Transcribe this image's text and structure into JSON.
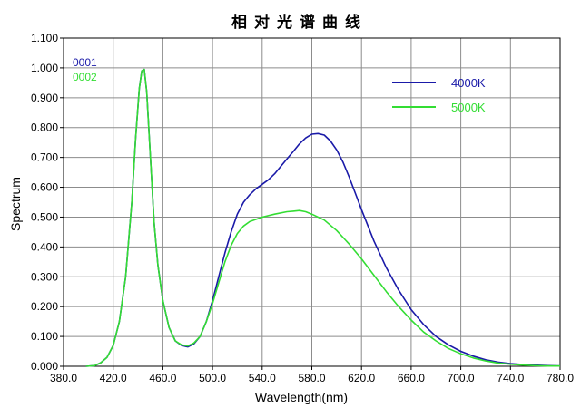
{
  "chart_data": {
    "type": "line",
    "title": "相对光谱曲线",
    "xlabel": "Wavelength(nm)",
    "ylabel": "Spectrum",
    "xlim": [
      380,
      780
    ],
    "ylim": [
      0,
      1.1
    ],
    "x_ticks": [
      "380.0",
      "420.0",
      "460.0",
      "500.0",
      "540.0",
      "580.0",
      "620.0",
      "660.0",
      "700.0",
      "740.0",
      "780.0"
    ],
    "y_ticks": [
      "0.000",
      "0.100",
      "0.200",
      "0.300",
      "0.400",
      "0.500",
      "0.600",
      "0.700",
      "0.800",
      "0.900",
      "1.000",
      "1.100"
    ],
    "grid": true,
    "legend_position": "top-right",
    "series_codes": [
      "0001",
      "0002"
    ],
    "series": [
      {
        "name": "4000K",
        "color": "#1a1aa8",
        "points": [
          [
            398,
            0
          ],
          [
            405,
            0.002
          ],
          [
            410,
            0.012
          ],
          [
            415,
            0.03
          ],
          [
            420,
            0.07
          ],
          [
            425,
            0.15
          ],
          [
            430,
            0.3
          ],
          [
            435,
            0.55
          ],
          [
            438,
            0.76
          ],
          [
            441,
            0.93
          ],
          [
            443,
            0.99
          ],
          [
            445,
            0.995
          ],
          [
            447,
            0.92
          ],
          [
            450,
            0.7
          ],
          [
            453,
            0.48
          ],
          [
            456,
            0.34
          ],
          [
            460,
            0.22
          ],
          [
            465,
            0.13
          ],
          [
            470,
            0.085
          ],
          [
            475,
            0.07
          ],
          [
            480,
            0.065
          ],
          [
            485,
            0.075
          ],
          [
            490,
            0.1
          ],
          [
            495,
            0.15
          ],
          [
            500,
            0.22
          ],
          [
            505,
            0.3
          ],
          [
            510,
            0.38
          ],
          [
            515,
            0.45
          ],
          [
            520,
            0.51
          ],
          [
            525,
            0.55
          ],
          [
            530,
            0.575
          ],
          [
            535,
            0.595
          ],
          [
            540,
            0.61
          ],
          [
            545,
            0.625
          ],
          [
            550,
            0.645
          ],
          [
            555,
            0.67
          ],
          [
            560,
            0.695
          ],
          [
            565,
            0.72
          ],
          [
            570,
            0.745
          ],
          [
            575,
            0.765
          ],
          [
            580,
            0.778
          ],
          [
            585,
            0.78
          ],
          [
            590,
            0.775
          ],
          [
            595,
            0.755
          ],
          [
            600,
            0.725
          ],
          [
            605,
            0.685
          ],
          [
            610,
            0.635
          ],
          [
            615,
            0.58
          ],
          [
            620,
            0.525
          ],
          [
            630,
            0.42
          ],
          [
            640,
            0.33
          ],
          [
            650,
            0.255
          ],
          [
            660,
            0.19
          ],
          [
            670,
            0.14
          ],
          [
            680,
            0.1
          ],
          [
            690,
            0.072
          ],
          [
            700,
            0.05
          ],
          [
            710,
            0.034
          ],
          [
            720,
            0.022
          ],
          [
            730,
            0.014
          ],
          [
            740,
            0.009
          ],
          [
            750,
            0.006
          ],
          [
            760,
            0.004
          ],
          [
            770,
            0.002
          ],
          [
            780,
            0.001
          ]
        ]
      },
      {
        "name": "5000K",
        "color": "#33dd33",
        "points": [
          [
            398,
            0
          ],
          [
            405,
            0.002
          ],
          [
            410,
            0.012
          ],
          [
            415,
            0.03
          ],
          [
            420,
            0.07
          ],
          [
            425,
            0.15
          ],
          [
            430,
            0.3
          ],
          [
            435,
            0.55
          ],
          [
            438,
            0.76
          ],
          [
            441,
            0.93
          ],
          [
            443,
            0.99
          ],
          [
            445,
            0.995
          ],
          [
            447,
            0.92
          ],
          [
            450,
            0.7
          ],
          [
            453,
            0.48
          ],
          [
            456,
            0.34
          ],
          [
            460,
            0.22
          ],
          [
            465,
            0.13
          ],
          [
            470,
            0.085
          ],
          [
            475,
            0.072
          ],
          [
            480,
            0.068
          ],
          [
            485,
            0.078
          ],
          [
            490,
            0.1
          ],
          [
            495,
            0.15
          ],
          [
            500,
            0.21
          ],
          [
            505,
            0.28
          ],
          [
            510,
            0.35
          ],
          [
            515,
            0.405
          ],
          [
            520,
            0.445
          ],
          [
            525,
            0.47
          ],
          [
            530,
            0.485
          ],
          [
            540,
            0.5
          ],
          [
            550,
            0.51
          ],
          [
            560,
            0.518
          ],
          [
            565,
            0.52
          ],
          [
            570,
            0.522
          ],
          [
            575,
            0.518
          ],
          [
            580,
            0.51
          ],
          [
            590,
            0.49
          ],
          [
            600,
            0.455
          ],
          [
            610,
            0.41
          ],
          [
            620,
            0.36
          ],
          [
            630,
            0.305
          ],
          [
            640,
            0.25
          ],
          [
            650,
            0.2
          ],
          [
            660,
            0.155
          ],
          [
            670,
            0.115
          ],
          [
            680,
            0.085
          ],
          [
            690,
            0.06
          ],
          [
            700,
            0.042
          ],
          [
            710,
            0.028
          ],
          [
            720,
            0.018
          ],
          [
            730,
            0.011
          ],
          [
            740,
            0.007
          ],
          [
            750,
            0.004
          ],
          [
            760,
            0.002
          ],
          [
            770,
            0.001
          ],
          [
            780,
            0.001
          ]
        ]
      }
    ]
  }
}
